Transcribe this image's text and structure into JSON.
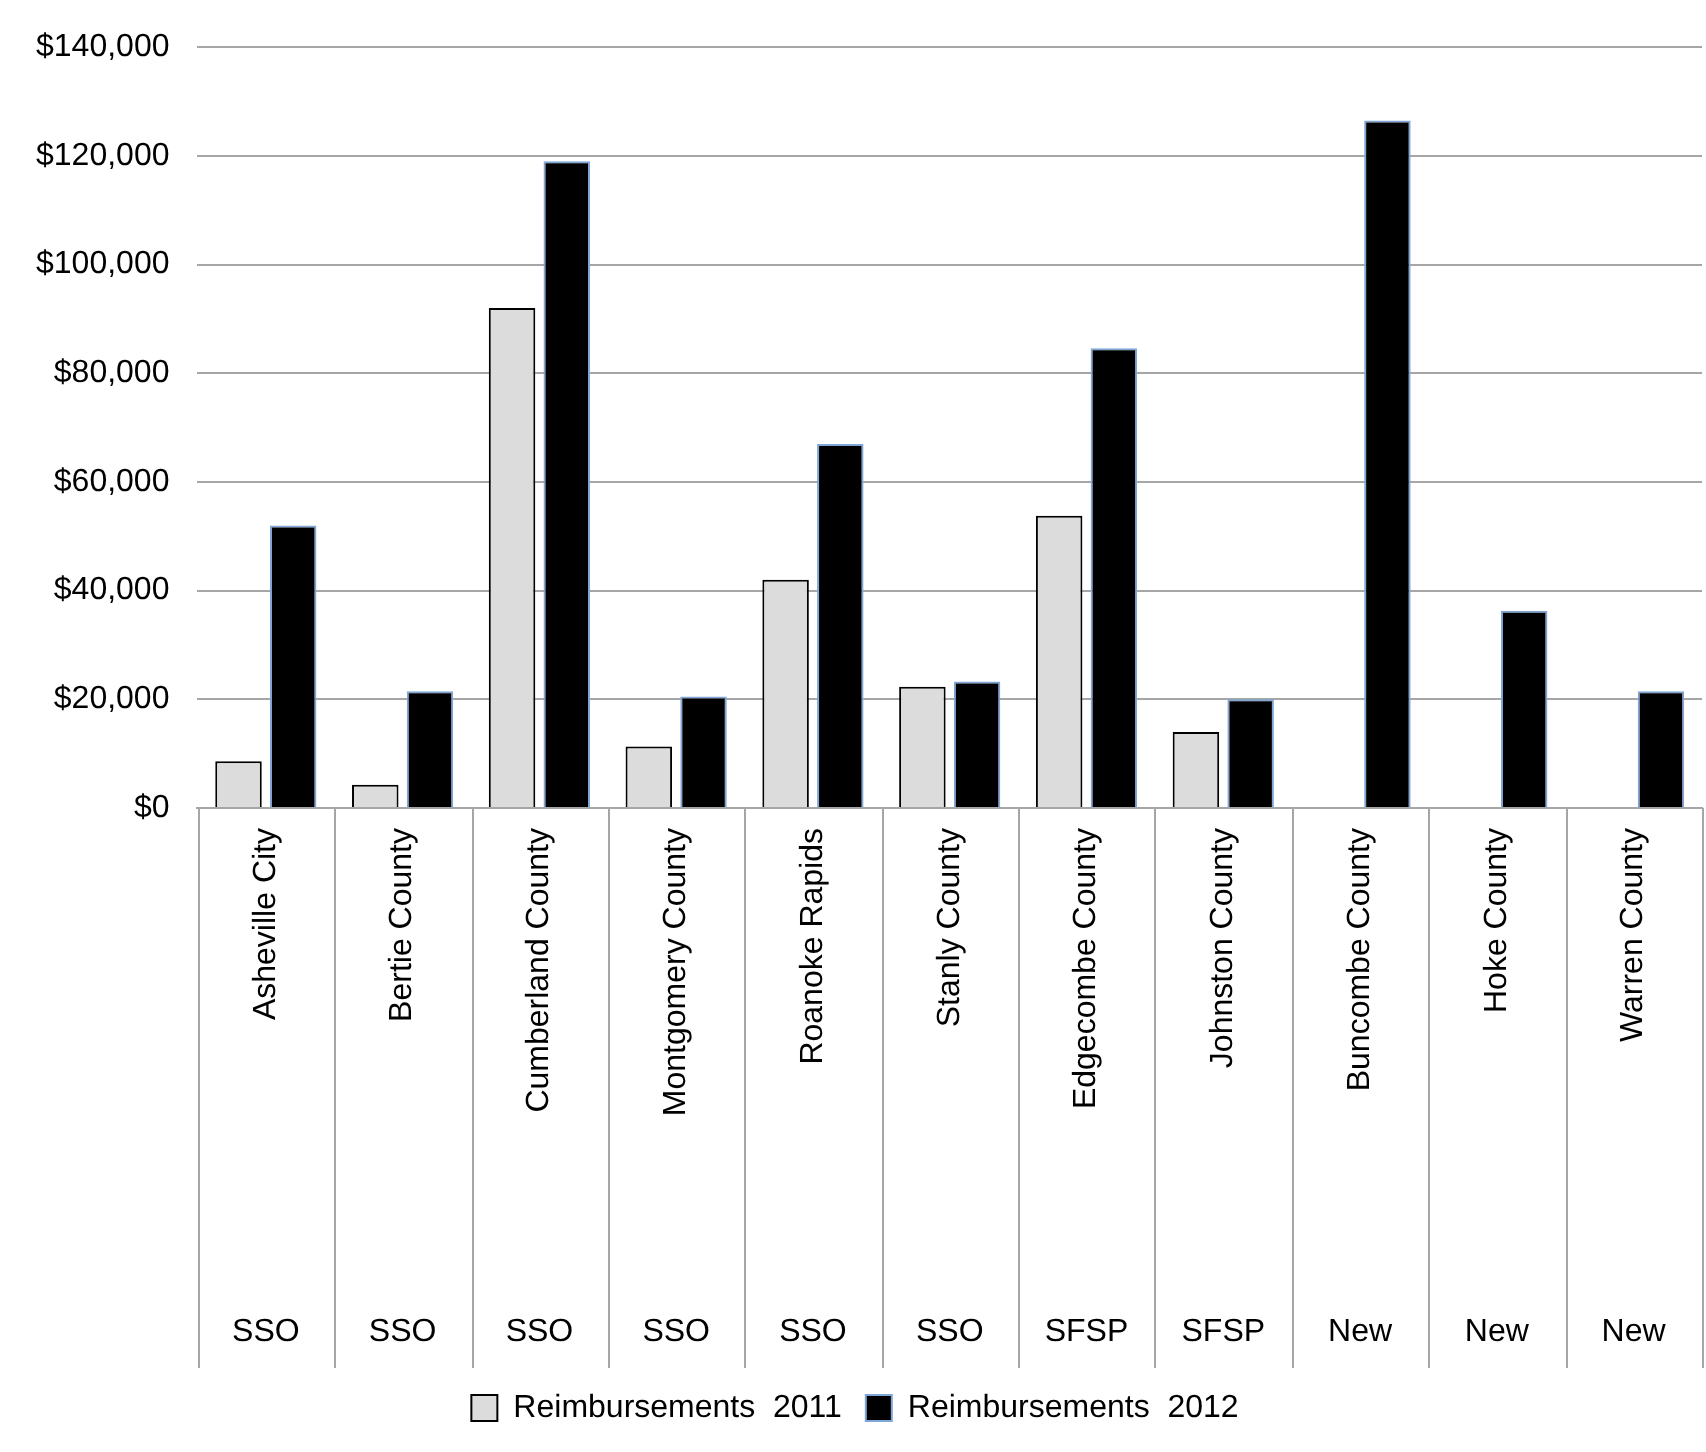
{
  "chart_data": {
    "type": "bar",
    "categories": [
      "Asheville City",
      "Bertie County",
      "Cumberland County",
      "Montgomery County",
      "Roanoke Rapids",
      "Stanly County",
      "Edgecombe County",
      "Johnston County",
      "Buncombe County",
      "Hoke County",
      "Warren County"
    ],
    "series": [
      {
        "name": "Reimbursements  2011",
        "color": "#dcdcdc",
        "values": [
          8600,
          4300,
          92000,
          11300,
          42000,
          22300,
          53800,
          14000,
          null,
          null,
          null
        ]
      },
      {
        "name": "Reimbursements  2012",
        "color": "#000000",
        "values": [
          52000,
          21500,
          119000,
          20500,
          67000,
          23300,
          84600,
          20000,
          126500,
          36300,
          21500
        ]
      }
    ],
    "annotations": [
      "SSO",
      "SSO",
      "SSO",
      "SSO",
      "SSO",
      "SSO",
      "SFSP",
      "SFSP",
      "New",
      "New",
      "New"
    ],
    "ylim": [
      0,
      140000
    ],
    "yticks": [
      {
        "value": 0,
        "label": "$0"
      },
      {
        "value": 20000,
        "label": "$20,000"
      },
      {
        "value": 40000,
        "label": "$40,000"
      },
      {
        "value": 60000,
        "label": "$60,000"
      },
      {
        "value": 80000,
        "label": "$80,000"
      },
      {
        "value": 100000,
        "label": "$100,000"
      },
      {
        "value": 120000,
        "label": "$120,000"
      },
      {
        "value": 140000,
        "label": "$140,000"
      }
    ],
    "grid": "y",
    "legend": "bottom"
  }
}
